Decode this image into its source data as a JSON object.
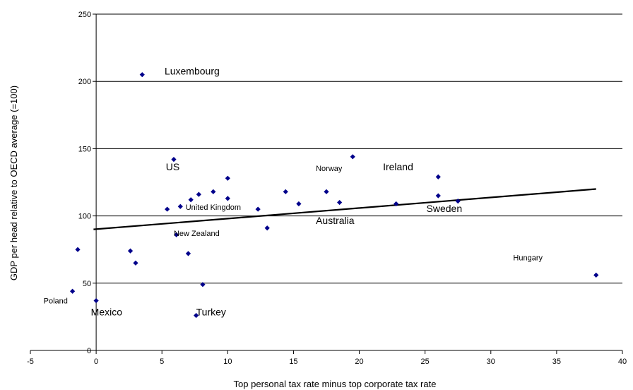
{
  "chart_data": {
    "type": "scatter",
    "title": "",
    "xlabel": "Top personal tax rate minus top corporate tax rate",
    "ylabel": "GDP per head relative to OECD average (=100)",
    "xlim": [
      -5,
      40
    ],
    "ylim": [
      0,
      250
    ],
    "xticks": [
      -5,
      0,
      5,
      10,
      15,
      20,
      25,
      30,
      35,
      40
    ],
    "yticks": [
      0,
      50,
      100,
      150,
      200,
      250
    ],
    "grid": "horizontal",
    "marker_color": "#00008B",
    "trendline": {
      "x": [
        -0.2,
        38
      ],
      "y": [
        90,
        120
      ],
      "color": "#000000"
    },
    "points": [
      {
        "x": -1.8,
        "y": 44
      },
      {
        "x": -1.4,
        "y": 75
      },
      {
        "x": 0,
        "y": 37
      },
      {
        "x": 2.6,
        "y": 74
      },
      {
        "x": 3,
        "y": 65
      },
      {
        "x": 3.5,
        "y": 205
      },
      {
        "x": 5.4,
        "y": 105
      },
      {
        "x": 5.9,
        "y": 142
      },
      {
        "x": 6.1,
        "y": 86
      },
      {
        "x": 6.4,
        "y": 107
      },
      {
        "x": 7,
        "y": 72
      },
      {
        "x": 7.2,
        "y": 112
      },
      {
        "x": 7.6,
        "y": 26
      },
      {
        "x": 7.8,
        "y": 116
      },
      {
        "x": 8.1,
        "y": 49
      },
      {
        "x": 8.9,
        "y": 118
      },
      {
        "x": 10,
        "y": 113
      },
      {
        "x": 10,
        "y": 128
      },
      {
        "x": 12.3,
        "y": 105
      },
      {
        "x": 13,
        "y": 91
      },
      {
        "x": 14.4,
        "y": 118
      },
      {
        "x": 15.4,
        "y": 109
      },
      {
        "x": 17.5,
        "y": 118
      },
      {
        "x": 18.5,
        "y": 110
      },
      {
        "x": 19.5,
        "y": 144
      },
      {
        "x": 22.8,
        "y": 109
      },
      {
        "x": 26,
        "y": 129
      },
      {
        "x": 26,
        "y": 115
      },
      {
        "x": 27.5,
        "y": 111
      },
      {
        "x": 38,
        "y": 56
      }
    ],
    "annotations": [
      {
        "text": "Luxembourg",
        "x": 5.2,
        "y": 205,
        "size": "lg"
      },
      {
        "text": "US",
        "x": 5.3,
        "y": 134,
        "size": "lg"
      },
      {
        "text": "Norway",
        "x": 16.7,
        "y": 133.5,
        "size": "sm"
      },
      {
        "text": "Ireland",
        "x": 21.8,
        "y": 134,
        "size": "lg"
      },
      {
        "text": "United Kingdom",
        "x": 6.8,
        "y": 104.5,
        "size": "sm"
      },
      {
        "text": "Australia",
        "x": 16.7,
        "y": 94,
        "size": "lg"
      },
      {
        "text": "Sweden",
        "x": 25.1,
        "y": 103,
        "size": "lg"
      },
      {
        "text": "New Zealand",
        "x": 5.9,
        "y": 85,
        "size": "sm"
      },
      {
        "text": "Hungary",
        "x": 31.7,
        "y": 67,
        "size": "sm"
      },
      {
        "text": "Poland",
        "x": -4,
        "y": 35,
        "size": "sm"
      },
      {
        "text": "Mexico",
        "x": -0.4,
        "y": 26,
        "size": "lg"
      },
      {
        "text": "Turkey",
        "x": 7.6,
        "y": 26,
        "size": "lg"
      }
    ]
  }
}
